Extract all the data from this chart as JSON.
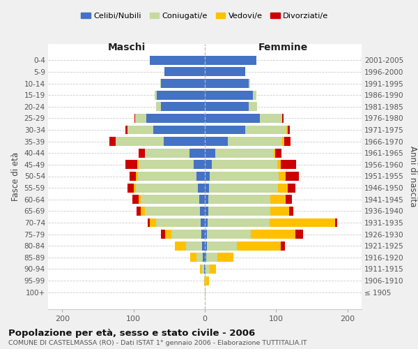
{
  "age_groups": [
    "100+",
    "95-99",
    "90-94",
    "85-89",
    "80-84",
    "75-79",
    "70-74",
    "65-69",
    "60-64",
    "55-59",
    "50-54",
    "45-49",
    "40-44",
    "35-39",
    "30-34",
    "25-29",
    "20-24",
    "15-19",
    "10-14",
    "5-9",
    "0-4"
  ],
  "birth_years": [
    "≤ 1905",
    "1906-1910",
    "1911-1915",
    "1916-1920",
    "1921-1925",
    "1926-1930",
    "1931-1935",
    "1936-1940",
    "1941-1945",
    "1946-1950",
    "1951-1955",
    "1956-1960",
    "1961-1965",
    "1966-1970",
    "1971-1975",
    "1976-1980",
    "1981-1985",
    "1986-1990",
    "1991-1995",
    "1996-2000",
    "2001-2005"
  ],
  "colors": {
    "celibi": "#4472c4",
    "coniugati": "#c5d9a0",
    "vedovi": "#ffc000",
    "divorziati": "#cc0000"
  },
  "maschi": {
    "celibi": [
      0,
      0,
      1,
      3,
      4,
      5,
      6,
      7,
      8,
      10,
      12,
      16,
      22,
      58,
      72,
      82,
      62,
      67,
      62,
      57,
      77
    ],
    "coniugati": [
      0,
      0,
      3,
      9,
      22,
      42,
      62,
      77,
      82,
      87,
      82,
      77,
      62,
      67,
      37,
      16,
      6,
      3,
      1,
      0,
      0
    ],
    "vedovi": [
      0,
      1,
      3,
      9,
      16,
      9,
      9,
      6,
      3,
      3,
      3,
      2,
      0,
      0,
      0,
      0,
      0,
      0,
      0,
      0,
      0
    ],
    "divorziati": [
      0,
      0,
      0,
      0,
      0,
      6,
      3,
      6,
      9,
      9,
      9,
      16,
      9,
      9,
      2,
      1,
      0,
      0,
      0,
      0,
      0
    ]
  },
  "femmine": {
    "celibi": [
      0,
      0,
      1,
      2,
      3,
      3,
      4,
      5,
      5,
      6,
      7,
      10,
      15,
      32,
      57,
      77,
      62,
      67,
      62,
      57,
      72
    ],
    "coniugati": [
      0,
      2,
      6,
      16,
      42,
      62,
      87,
      87,
      87,
      97,
      97,
      92,
      82,
      77,
      57,
      32,
      11,
      5,
      2,
      0,
      0
    ],
    "vedovi": [
      1,
      4,
      9,
      22,
      62,
      62,
      92,
      26,
      21,
      13,
      9,
      5,
      2,
      2,
      2,
      0,
      0,
      0,
      0,
      0,
      0
    ],
    "divorziati": [
      0,
      0,
      0,
      0,
      5,
      11,
      3,
      6,
      9,
      11,
      19,
      21,
      9,
      9,
      3,
      1,
      0,
      0,
      0,
      0,
      0
    ]
  },
  "xlim": 220,
  "xticks": [
    -200,
    -100,
    0,
    100,
    200
  ],
  "xtick_labels": [
    "200",
    "100",
    "0",
    "100",
    "200"
  ],
  "legend_labels": [
    "Celibi/Nubili",
    "Coniugati/e",
    "Vedovi/e",
    "Divorziati/e"
  ],
  "title": "Popolazione per età, sesso e stato civile - 2006",
  "subtitle": "COMUNE DI CASTELMASSA (RO) - Dati ISTAT 1° gennaio 2006 - Elaborazione TUTTITALIA.IT",
  "ylabel_left": "Fasce di età",
  "ylabel_right": "Anni di nascita",
  "xlabel_maschi": "Maschi",
  "xlabel_femmine": "Femmine",
  "bg_color": "#f0f0f0",
  "plot_bg": "#ffffff"
}
